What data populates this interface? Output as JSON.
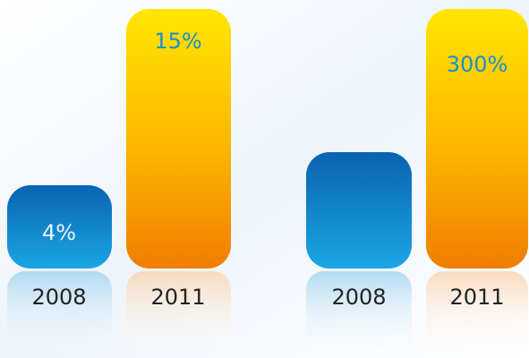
{
  "panels": [
    {
      "bars": [
        {
          "year": "2008",
          "label": "4%"
        },
        {
          "year": "2011",
          "label": "15%"
        }
      ]
    },
    {
      "bars": [
        {
          "year": "2008"
        },
        {
          "year": "2011",
          "label": "300%"
        }
      ]
    }
  ]
}
